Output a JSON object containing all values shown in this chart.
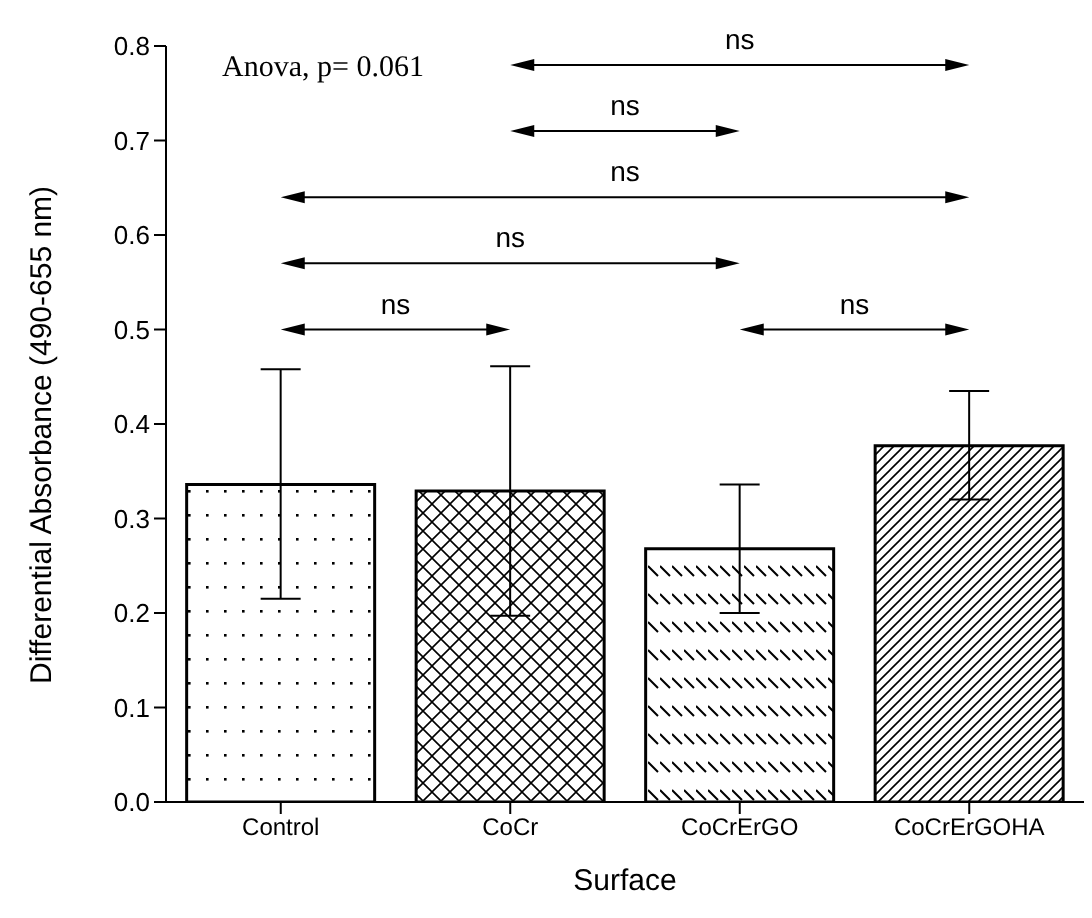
{
  "chart_data": {
    "type": "bar",
    "xlabel": "Surface",
    "ylabel": "Differential Absorbance (490-655 nm)",
    "categories": [
      "Control",
      "CoCr",
      "CoCrErGO",
      "CoCrErGOHA"
    ],
    "values": [
      0.336,
      0.329,
      0.268,
      0.377
    ],
    "errors": [
      [
        0.215,
        0.458
      ],
      [
        0.197,
        0.461
      ],
      [
        0.2,
        0.336
      ],
      [
        0.32,
        0.435
      ]
    ],
    "color": "#000000",
    "ylim": [
      0,
      0.8
    ],
    "yticks": [
      {
        "value": 0,
        "label": "0.0"
      },
      {
        "value": 0.1,
        "label": "0.1"
      },
      {
        "value": 0.2,
        "label": "0.2"
      },
      {
        "value": 0.3,
        "label": "0.3"
      },
      {
        "value": 0.4,
        "label": "0.4"
      },
      {
        "value": 0.5,
        "label": "0.5"
      },
      {
        "value": 0.6,
        "label": "0.6"
      },
      {
        "value": 0.7,
        "label": "0.7"
      },
      {
        "value": 0.8,
        "label": "0.8"
      }
    ],
    "grid": false,
    "legend": false,
    "annotations": [
      "Anova, p= 0.061",
      "ns",
      "ns",
      "ns",
      "ns",
      "ns",
      "ns"
    ]
  }
}
